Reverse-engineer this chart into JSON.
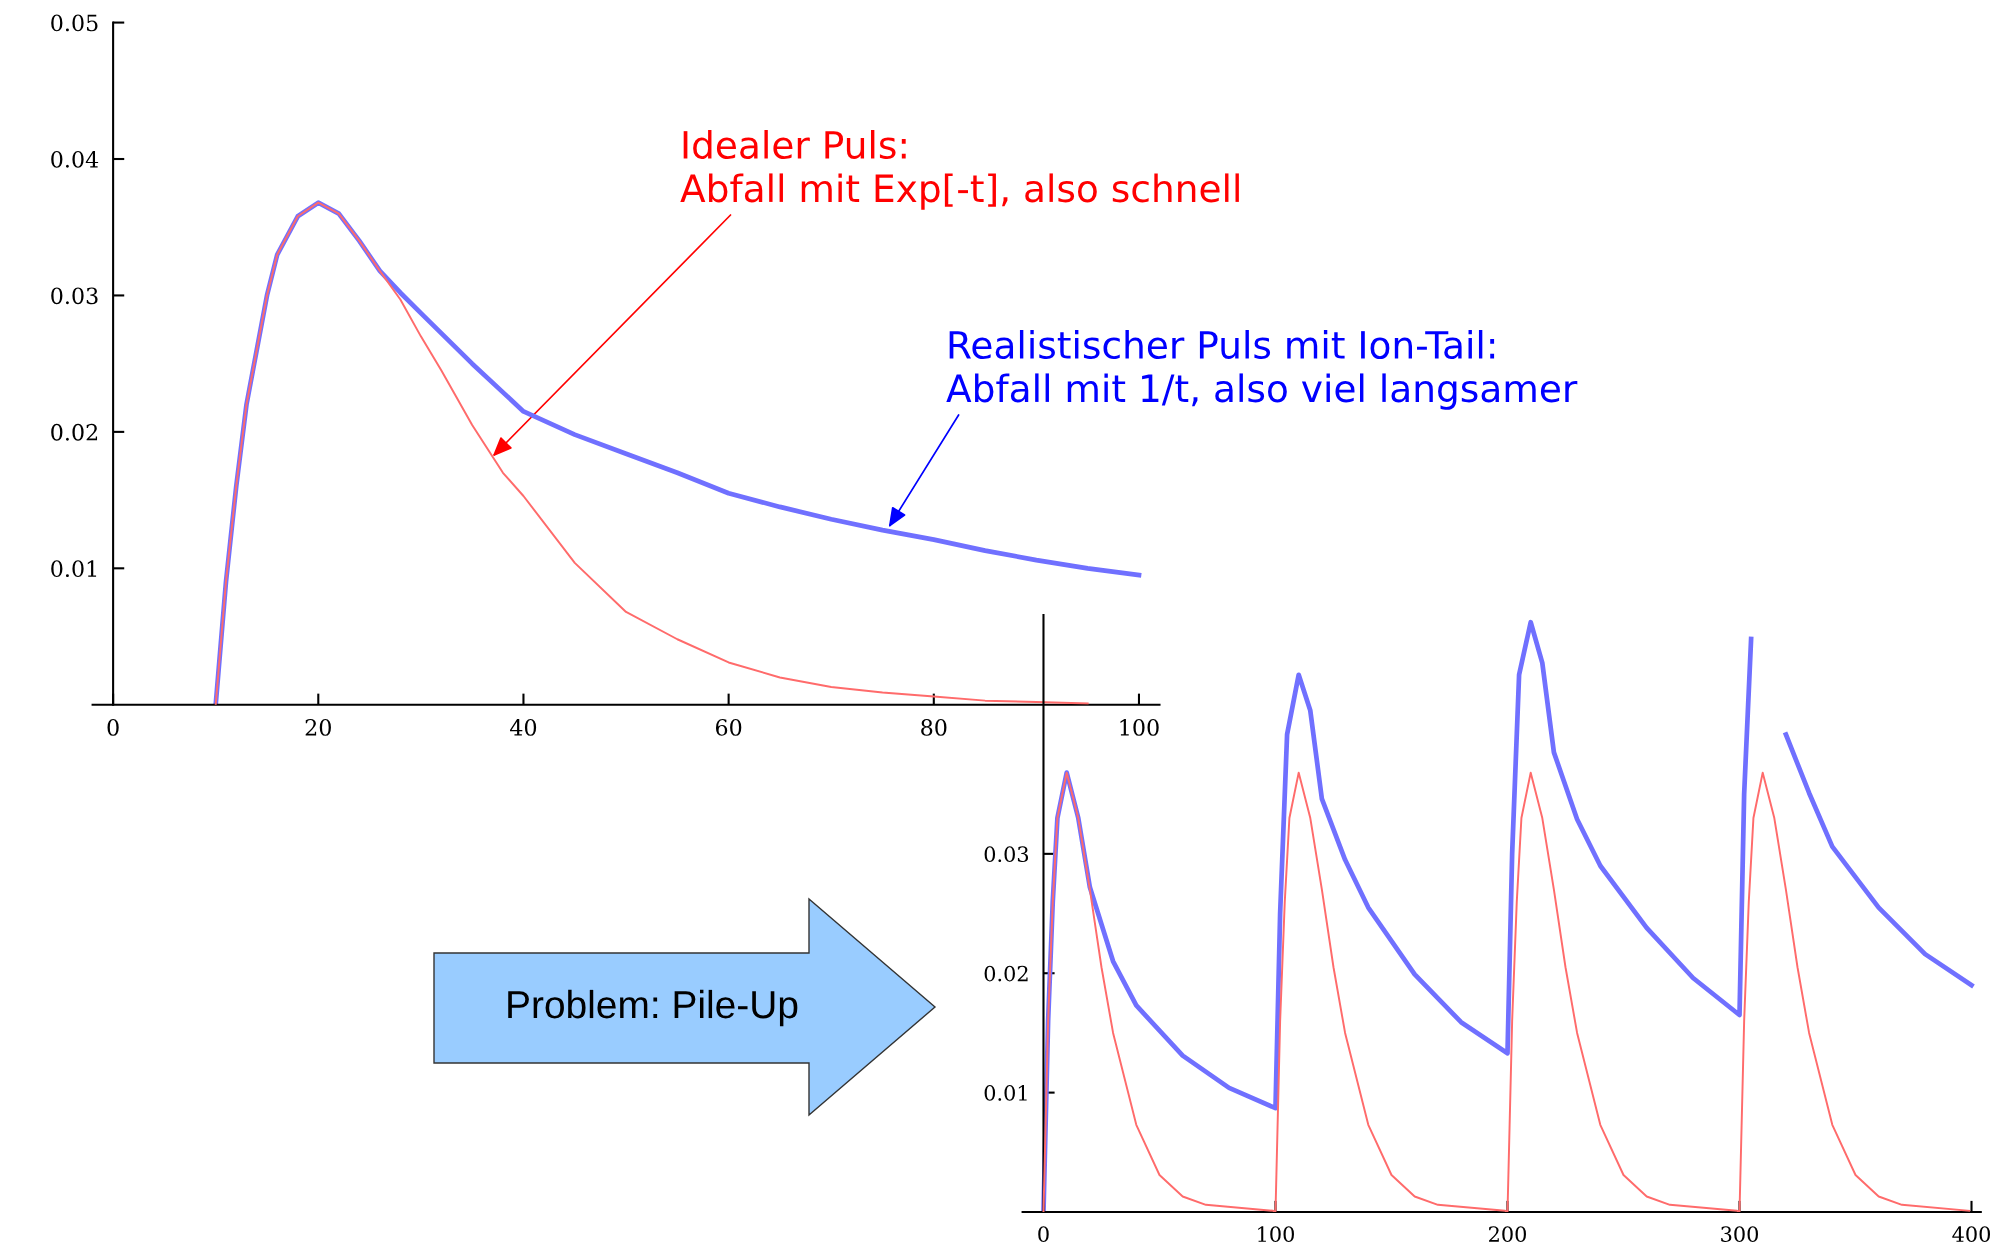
{
  "chart_data": [
    {
      "type": "line",
      "xlim": [
        -2,
        102
      ],
      "ylim": [
        0,
        0.05
      ],
      "xticks": [
        0,
        20,
        40,
        60,
        80,
        100
      ],
      "yticks": [
        0.01,
        0.02,
        0.03,
        0.04,
        0.05
      ],
      "line_style": "solid",
      "marker": "none",
      "series": [
        {
          "color": "#7070ff",
          "x": [
            10,
            11,
            12,
            13,
            14,
            15,
            16,
            18,
            20,
            22,
            24,
            26,
            28,
            30,
            35,
            40,
            45,
            50,
            55,
            60,
            65,
            70,
            75,
            80,
            85,
            90,
            95,
            100
          ],
          "values": [
            0,
            0.009,
            0.016,
            0.022,
            0.026,
            0.03,
            0.033,
            0.0358,
            0.0368,
            0.036,
            0.034,
            0.0318,
            0.0302,
            0.0287,
            0.025,
            0.0215,
            0.0198,
            0.0184,
            0.017,
            0.0155,
            0.0145,
            0.0136,
            0.0128,
            0.0121,
            0.0113,
            0.0106,
            0.01,
            0.0095
          ]
        },
        {
          "color": "#ff6b6b",
          "x": [
            10,
            11,
            12,
            13,
            14,
            15,
            16,
            18,
            20,
            22,
            24,
            26,
            28,
            30,
            32,
            35,
            38,
            40,
            45,
            50,
            55,
            60,
            65,
            70,
            75,
            80,
            85,
            90,
            95
          ],
          "values": [
            0,
            0.009,
            0.016,
            0.022,
            0.026,
            0.03,
            0.033,
            0.0358,
            0.0368,
            0.036,
            0.034,
            0.0318,
            0.0297,
            0.027,
            0.0245,
            0.0205,
            0.017,
            0.0153,
            0.0104,
            0.0068,
            0.0048,
            0.0031,
            0.002,
            0.0013,
            0.0009,
            0.0006,
            0.0003,
            0.0002,
            0.0001
          ]
        }
      ],
      "annotations": [
        {
          "text": "Realistischer Puls mit Ion-Tail:\nAbfall mit 1/t, also viel langsamer",
          "x": 75.6,
          "y": 0.013
        },
        {
          "text": "Idealer Puls:\nAbfall mit Exp[-t], also schnell",
          "x": 37,
          "y": 0.0182
        }
      ]
    },
    {
      "type": "line",
      "xlim": [
        -9,
        404
      ],
      "ylim": [
        0,
        0.05
      ],
      "xticks": [
        0,
        100,
        200,
        300,
        400
      ],
      "yticks": [
        0.01,
        0.02,
        0.03
      ],
      "line_style": "solid",
      "marker": "none",
      "series": [
        {
          "color": "#7070ff",
          "x": [
            0,
            2,
            4,
            6,
            10,
            15,
            20,
            30,
            40,
            60,
            80,
            100,
            102,
            105,
            110,
            115,
            120,
            130,
            140,
            160,
            180,
            200,
            202,
            205,
            210,
            215,
            220,
            230,
            240,
            260,
            280,
            300,
            302,
            305,
            308,
            313,
            320,
            330,
            340,
            360,
            380,
            400
          ],
          "values": [
            0,
            0.016,
            0.026,
            0.033,
            0.0368,
            0.033,
            0.0272,
            0.021,
            0.0173,
            0.0131,
            0.0104,
            0.0087,
            0.025,
            0.04,
            0.045,
            0.042,
            0.0346,
            0.0295,
            0.0255,
            0.0199,
            0.0159,
            0.0133,
            0.03,
            0.045,
            0.0494,
            0.046,
            0.0385,
            0.0329,
            0.029,
            0.0238,
            0.0196,
            0.0165,
            0.035,
            0.048,
            null,
            null,
            0.04,
            0.0351,
            0.0306,
            0.0255,
            0.0216,
            0.019
          ]
        },
        {
          "color": "#ff6b6b",
          "x": [
            0,
            2,
            4,
            6,
            10,
            15,
            20,
            25,
            30,
            40,
            50,
            60,
            70,
            99,
            100,
            102,
            104,
            106,
            110,
            115,
            120,
            125,
            130,
            140,
            150,
            160,
            170,
            199,
            200,
            202,
            204,
            206,
            210,
            215,
            220,
            225,
            230,
            240,
            250,
            260,
            270,
            299,
            300,
            302,
            304,
            306,
            310,
            315,
            320,
            325,
            330,
            340,
            350,
            360,
            370,
            399
          ],
          "values": [
            0,
            0.016,
            0.026,
            0.033,
            0.0368,
            0.033,
            0.027,
            0.0205,
            0.015,
            0.0073,
            0.0031,
            0.0013,
            0.0006,
            0.0001,
            0,
            0.016,
            0.026,
            0.033,
            0.0368,
            0.033,
            0.027,
            0.0205,
            0.015,
            0.0073,
            0.0031,
            0.0013,
            0.0006,
            0.0001,
            0,
            0.016,
            0.026,
            0.033,
            0.0368,
            0.033,
            0.027,
            0.0205,
            0.015,
            0.0073,
            0.0031,
            0.0013,
            0.0006,
            0.0001,
            0,
            0.016,
            0.026,
            0.033,
            0.0368,
            0.033,
            0.027,
            0.0205,
            0.015,
            0.0073,
            0.0031,
            0.0013,
            0.0006,
            0.0001
          ]
        }
      ],
      "annotations": [
        "Problem: Pile-Up"
      ]
    }
  ]
}
